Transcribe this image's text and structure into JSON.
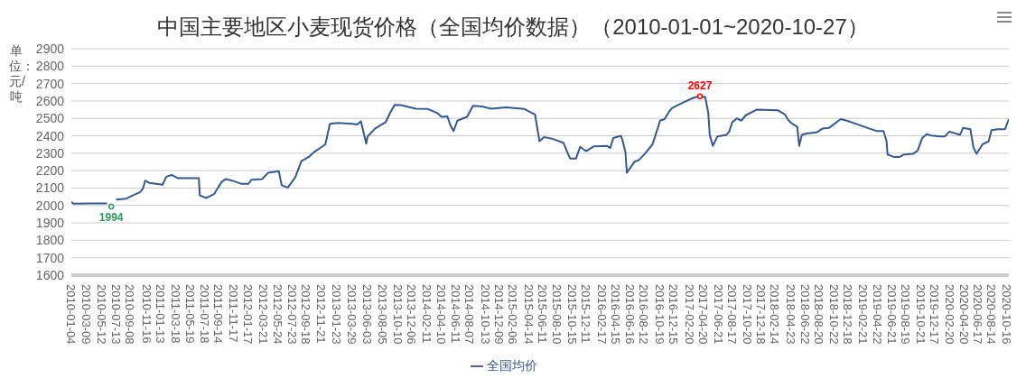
{
  "chart_data": {
    "type": "line",
    "title": "中国主要地区小麦现货价格（全国均价数据）（2010-01-01~2020-10-27）",
    "ylabel": "单位：元/吨",
    "grid": "y",
    "legend": "bottom",
    "marker": "none",
    "line_style": "solid",
    "xlim": [
      "2010-01-04",
      "2020-10-27"
    ],
    "xticks": [
      "2010-01-04",
      "2010-03-09",
      "2010-05-12",
      "2010-07-13",
      "2010-09-08",
      "2010-11-16",
      "2011-01-13",
      "2011-03-18",
      "2011-05-19",
      "2011-07-18",
      "2011-09-14",
      "2011-11-17",
      "2012-01-17",
      "2012-03-21",
      "2012-05-24",
      "2012-07-23",
      "2012-09-18",
      "2012-11-21",
      "2013-01-23",
      "2013-03-29",
      "2013-06-03",
      "2013-08-05",
      "2013-10-10",
      "2013-12-06",
      "2014-02-11",
      "2014-04-10",
      "2014-06-11",
      "2014-08-07",
      "2014-10-13",
      "2014-12-09",
      "2015-02-06",
      "2015-04-14",
      "2015-06-11",
      "2015-08-10",
      "2015-10-15",
      "2015-12-11",
      "2016-02-17",
      "2016-04-15",
      "2016-06-16",
      "2016-08-12",
      "2016-10-19",
      "2016-12-15",
      "2017-02-20",
      "2017-04-20",
      "2017-06-21",
      "2017-08-17",
      "2017-10-20",
      "2017-12-18",
      "2018-02-14",
      "2018-04-23",
      "2018-06-22",
      "2018-08-20",
      "2018-10-22",
      "2018-12-18",
      "2019-02-21",
      "2019-04-22",
      "2019-06-21",
      "2019-08-19",
      "2019-10-21",
      "2019-12-17",
      "2020-02-20",
      "2020-04-20",
      "2020-06-17",
      "2020-08-14",
      "2020-10-16"
    ],
    "ylim": [
      1600,
      2900
    ],
    "yticks": [
      1600,
      1700,
      1800,
      1900,
      2000,
      2100,
      2200,
      2300,
      2400,
      2500,
      2600,
      2700,
      2800,
      2900
    ],
    "series": [
      {
        "name": "全国均价",
        "color": "#35598f",
        "x": [
          "2010-01-04",
          "2010-01-14",
          "2010-03-25",
          "2010-05-28",
          "2010-06-03",
          "2010-06-21",
          "2010-07-11",
          "2010-08-24",
          "2010-09-19",
          "2010-10-20",
          "2010-11-02",
          "2010-11-11",
          "2010-11-28",
          "2011-01-23",
          "2011-02-08",
          "2011-03-03",
          "2011-03-28",
          "2011-06-25",
          "2011-06-29",
          "2011-07-27",
          "2011-08-28",
          "2011-09-28",
          "2011-10-17",
          "2011-11-12",
          "2011-12-20",
          "2012-01-20",
          "2012-02-02",
          "2012-03-18",
          "2012-04-12",
          "2012-05-27",
          "2012-06-08",
          "2012-07-04",
          "2012-08-04",
          "2012-08-30",
          "2012-09-30",
          "2012-10-22",
          "2012-11-20",
          "2012-12-09",
          "2012-12-28",
          "2013-01-29",
          "2013-04-02",
          "2013-04-22",
          "2013-05-08",
          "2013-05-30",
          "2013-06-05",
          "2013-07-07",
          "2013-08-20",
          "2013-09-08",
          "2013-09-27",
          "2013-10-23",
          "2013-12-25",
          "2014-02-14",
          "2014-03-24",
          "2014-04-12",
          "2014-05-07",
          "2014-05-20",
          "2014-06-02",
          "2014-06-18",
          "2014-07-29",
          "2014-08-23",
          "2014-09-30",
          "2014-11-07",
          "2015-01-10",
          "2015-03-27",
          "2015-05-11",
          "2015-05-30",
          "2015-06-18",
          "2015-07-20",
          "2015-09-08",
          "2015-09-27",
          "2015-10-06",
          "2015-10-31",
          "2015-11-17",
          "2015-12-12",
          "2016-01-13",
          "2016-03-10",
          "2016-03-23",
          "2016-04-05",
          "2016-05-07",
          "2016-05-13",
          "2016-05-26",
          "2016-06-01",
          "2016-07-03",
          "2016-07-22",
          "2016-08-16",
          "2016-09-17",
          "2016-09-30",
          "2016-10-19",
          "2016-11-07",
          "2016-11-26",
          "2016-12-08",
          "2017-01-03",
          "2017-01-22",
          "2017-03-01",
          "2017-03-20",
          "2017-04-05",
          "2017-04-27",
          "2017-05-10",
          "2017-05-16",
          "2017-05-29",
          "2017-06-17",
          "2017-07-25",
          "2017-08-06",
          "2017-08-19",
          "2017-09-07",
          "2017-09-26",
          "2017-10-15",
          "2017-11-29",
          "2018-02-26",
          "2018-03-29",
          "2018-04-11",
          "2018-04-24",
          "2018-05-20",
          "2018-05-28",
          "2018-06-08",
          "2018-06-27",
          "2018-08-10",
          "2018-09-04",
          "2018-09-30",
          "2018-11-19",
          "2018-12-15",
          "2019-02-03",
          "2019-04-20",
          "2019-05-18",
          "2019-05-31",
          "2019-06-04",
          "2019-06-30",
          "2019-07-25",
          "2019-08-13",
          "2019-09-20",
          "2019-10-09",
          "2019-10-28",
          "2019-11-16",
          "2019-12-05",
          "2020-01-12",
          "2020-01-31",
          "2020-02-19",
          "2020-04-04",
          "2020-04-17",
          "2020-05-18",
          "2020-05-31",
          "2020-06-13",
          "2020-07-08",
          "2020-08-03",
          "2020-08-15",
          "2020-09-10",
          "2020-10-11",
          "2020-10-27"
        ],
        "values": [
          2020,
          2010,
          2012,
          2012,
          2012,
          null,
          2034,
          2039,
          2058,
          2076,
          2098,
          2143,
          2130,
          2119,
          2165,
          2175,
          2157,
          2157,
          2058,
          2043,
          2065,
          2134,
          2152,
          2143,
          2125,
          2125,
          2148,
          2152,
          2188,
          2197,
          2116,
          2103,
          2161,
          2255,
          2279,
          2306,
          2333,
          2351,
          2469,
          2474,
          2469,
          2465,
          2483,
          2355,
          2396,
          2442,
          2478,
          2532,
          2578,
          2576,
          2556,
          2554,
          2532,
          2509,
          2511,
          2460,
          2427,
          2487,
          2509,
          2572,
          2569,
          2556,
          2563,
          2554,
          2523,
          2369,
          2392,
          2384,
          2360,
          2297,
          2270,
          2270,
          2337,
          2312,
          2339,
          2342,
          2330,
          2387,
          2400,
          2378,
          2306,
          2188,
          2251,
          2261,
          2297,
          2351,
          2405,
          2487,
          2496,
          2540,
          2559,
          2577,
          2590,
          2614,
          2623,
          2627,
          2623,
          2532,
          2405,
          2342,
          2396,
          2405,
          2424,
          2478,
          2500,
          2487,
          2518,
          2550,
          2547,
          2523,
          2492,
          2474,
          2451,
          2342,
          2405,
          2413,
          2420,
          2442,
          2445,
          2496,
          2487,
          2463,
          2427,
          2427,
          2369,
          2293,
          2279,
          2279,
          2293,
          2297,
          2315,
          2387,
          2409,
          2402,
          2396,
          2396,
          2424,
          2405,
          2445,
          2438,
          2333,
          2297,
          2351,
          2369,
          2433,
          2438,
          2438,
          2496
        ]
      }
    ],
    "annotations": [
      {
        "text": "1994",
        "x": "2010-06-21",
        "y": 1994
      },
      {
        "text": "2627",
        "x": "2017-04-05",
        "y": 2627
      }
    ]
  }
}
